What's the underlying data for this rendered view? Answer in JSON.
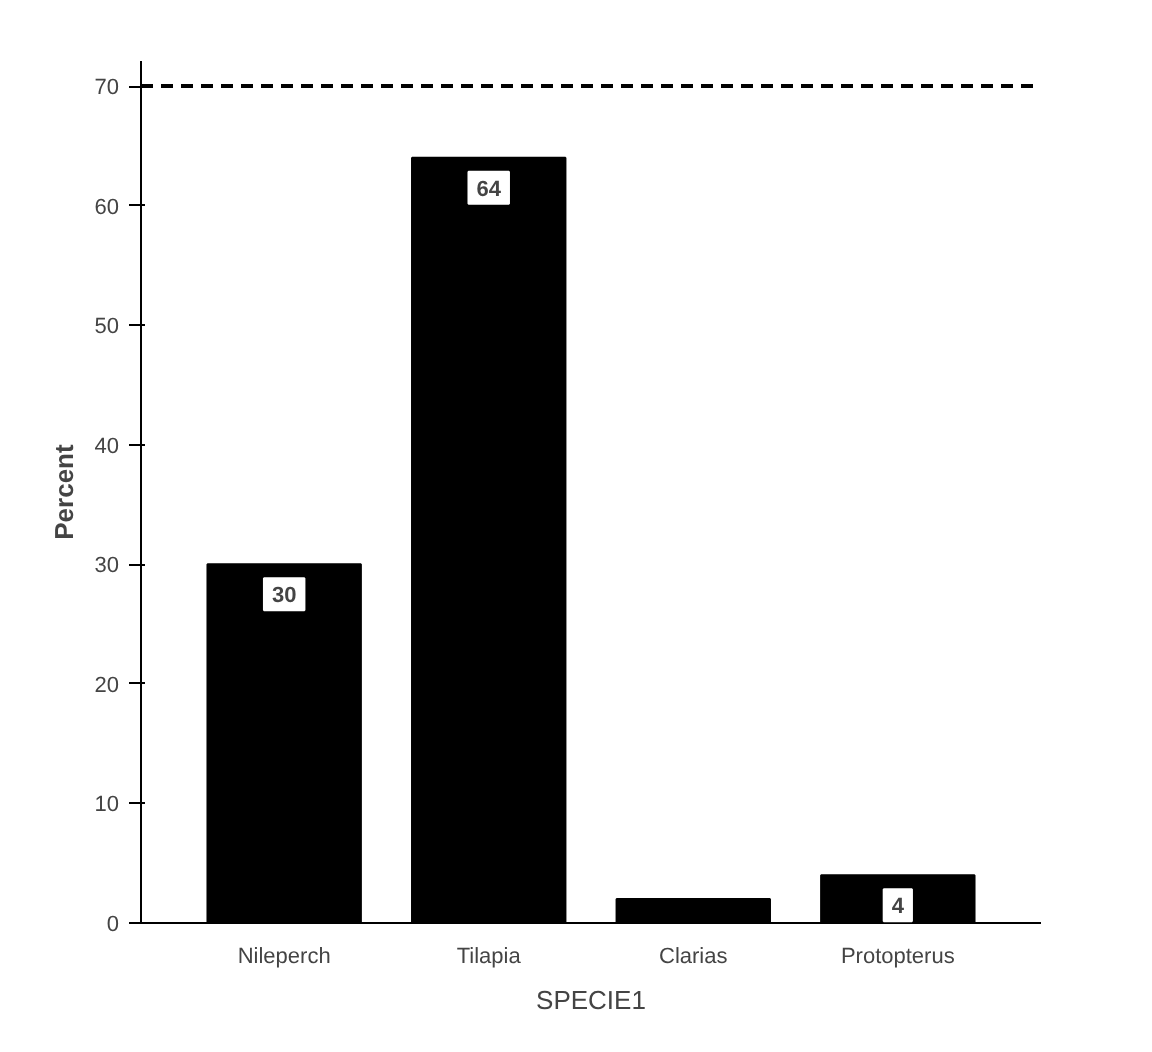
{
  "chart_data": {
    "type": "bar",
    "categories": [
      "Nileperch",
      "Tilapia",
      "Clarias",
      "Protopterus"
    ],
    "values": [
      30,
      64,
      2,
      4
    ],
    "color": "#000000",
    "value_labels": [
      "30",
      "64",
      null,
      "4"
    ],
    "ylim": [
      0,
      70
    ],
    "yticks": [
      0,
      10,
      20,
      30,
      40,
      50,
      60,
      70
    ],
    "ylabel": "Percent",
    "xlabel": "SPECIE1",
    "ref_lines": [
      {
        "axis": "y",
        "value": 70,
        "line_style": "dashed"
      }
    ],
    "grid": false
  }
}
